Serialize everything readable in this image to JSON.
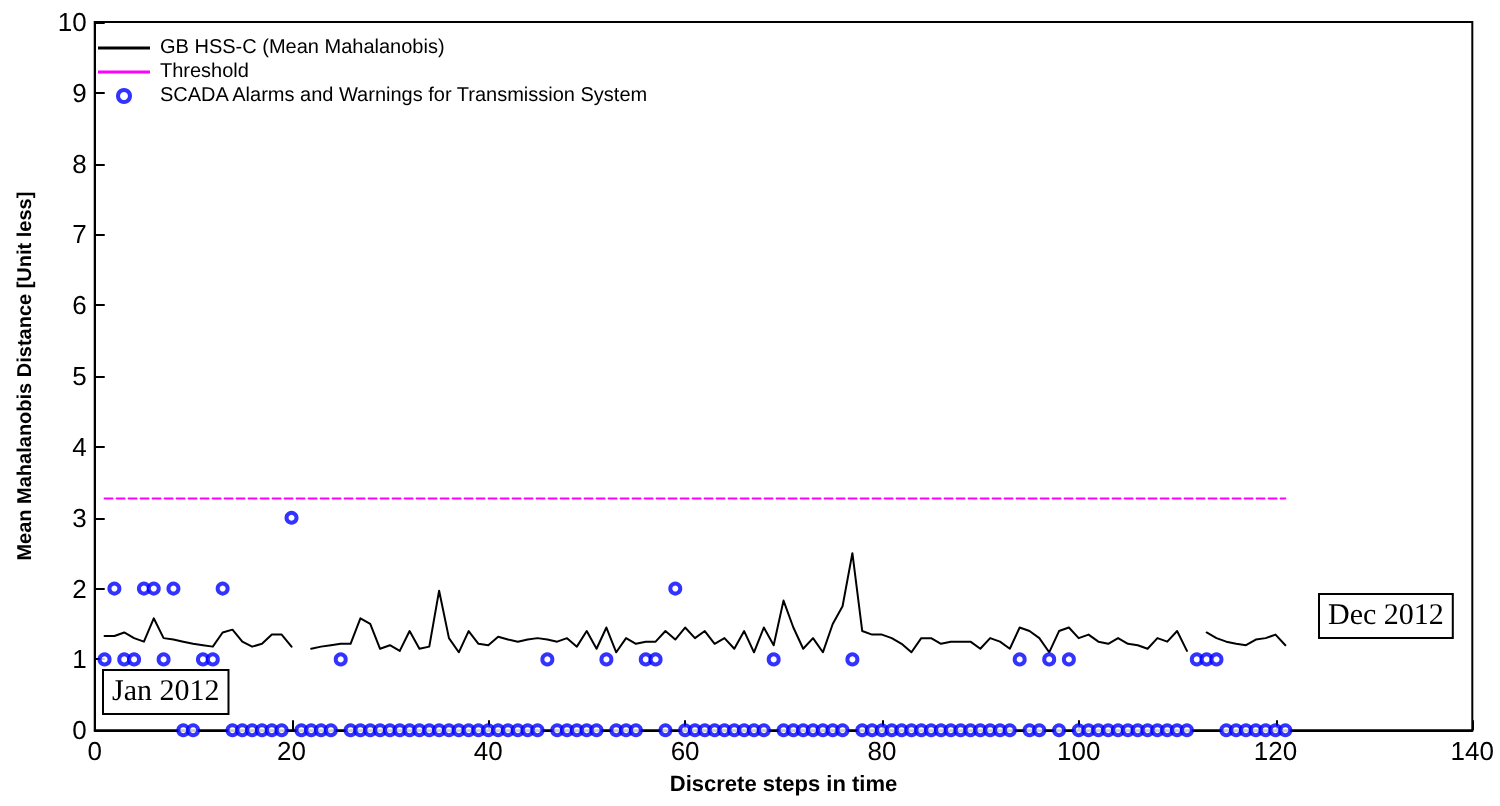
{
  "chart_data": {
    "type": "line",
    "xlabel": "Discrete steps in time",
    "ylabel": "Mean Mahalanobis Distance [Unit less]",
    "x": [
      1,
      2,
      3,
      4,
      5,
      6,
      7,
      8,
      9,
      10,
      11,
      12,
      13,
      14,
      15,
      16,
      17,
      18,
      19,
      20,
      21,
      22,
      23,
      24,
      25,
      26,
      27,
      28,
      29,
      30,
      31,
      32,
      33,
      34,
      35,
      36,
      37,
      38,
      39,
      40,
      41,
      42,
      43,
      44,
      45,
      46,
      47,
      48,
      49,
      50,
      51,
      52,
      53,
      54,
      55,
      56,
      57,
      58,
      59,
      60,
      61,
      62,
      63,
      64,
      65,
      66,
      67,
      68,
      69,
      70,
      71,
      72,
      73,
      74,
      75,
      76,
      77,
      78,
      79,
      80,
      81,
      82,
      83,
      84,
      85,
      86,
      87,
      88,
      89,
      90,
      91,
      92,
      93,
      94,
      95,
      96,
      97,
      98,
      99,
      100,
      101,
      102,
      103,
      104,
      105,
      106,
      107,
      108,
      109,
      110,
      111,
      112,
      113,
      114,
      115,
      116,
      117,
      118,
      119,
      120,
      121
    ],
    "series": [
      {
        "name": "GB HSS-C (Mean Mahalanobis)",
        "color": "#000000",
        "marker": "none",
        "line_style": "solid",
        "values": [
          1.33,
          1.33,
          1.38,
          1.3,
          1.25,
          1.58,
          1.3,
          1.28,
          1.25,
          1.22,
          1.2,
          1.18,
          1.38,
          1.42,
          1.25,
          1.18,
          1.22,
          1.35,
          1.35,
          1.18,
          null,
          1.15,
          1.18,
          1.2,
          1.22,
          1.22,
          1.58,
          1.5,
          1.15,
          1.2,
          1.12,
          1.4,
          1.15,
          1.18,
          1.97,
          1.3,
          1.1,
          1.4,
          1.22,
          1.2,
          1.32,
          1.28,
          1.25,
          1.28,
          1.3,
          1.28,
          1.25,
          1.3,
          1.18,
          1.4,
          1.15,
          1.45,
          1.1,
          1.3,
          1.22,
          1.25,
          1.25,
          1.4,
          1.28,
          1.45,
          1.3,
          1.4,
          1.22,
          1.3,
          1.15,
          1.4,
          1.1,
          1.45,
          1.2,
          1.83,
          1.45,
          1.15,
          1.3,
          1.1,
          1.5,
          1.75,
          2.5,
          1.4,
          1.35,
          1.35,
          1.3,
          1.22,
          1.1,
          1.3,
          1.3,
          1.22,
          1.25,
          1.25,
          1.25,
          1.15,
          1.3,
          1.25,
          1.15,
          1.45,
          1.4,
          1.3,
          1.1,
          1.4,
          1.45,
          1.3,
          1.35,
          1.25,
          1.22,
          1.3,
          1.22,
          1.2,
          1.15,
          1.3,
          1.25,
          1.4,
          1.12,
          null,
          1.38,
          1.3,
          1.25,
          1.22,
          1.2,
          1.28,
          1.3,
          1.35,
          1.2
        ]
      },
      {
        "name": "Threshold",
        "type": "line",
        "color": "#ff00ff",
        "marker": "none",
        "line_style": "dashed",
        "x": [
          1,
          121
        ],
        "values": [
          3.27,
          3.27
        ]
      },
      {
        "name": "SCADA Alarms and Warnings for Transmission System",
        "type": "scatter",
        "color": "#0000ff",
        "marker": "circle",
        "values": [
          1,
          2,
          1,
          1,
          2,
          2,
          1,
          2,
          0,
          0,
          1,
          1,
          2,
          0,
          0,
          0,
          0,
          0,
          0,
          3,
          0,
          0,
          0,
          0,
          1,
          0,
          0,
          0,
          0,
          0,
          0,
          0,
          0,
          0,
          0,
          0,
          0,
          0,
          0,
          0,
          0,
          0,
          0,
          0,
          0,
          1,
          0,
          0,
          0,
          0,
          0,
          1,
          0,
          0,
          0,
          1,
          1,
          0,
          2,
          0,
          0,
          0,
          0,
          0,
          0,
          0,
          0,
          0,
          1,
          0,
          0,
          0,
          0,
          0,
          0,
          0,
          1,
          0,
          0,
          0,
          0,
          0,
          0,
          0,
          0,
          0,
          0,
          0,
          0,
          0,
          0,
          0,
          0,
          1,
          0,
          0,
          1,
          0,
          1,
          0,
          0,
          0,
          0,
          0,
          0,
          0,
          0,
          0,
          0,
          0,
          0,
          1,
          1,
          1,
          0,
          0,
          0,
          0,
          0,
          0,
          0
        ]
      }
    ],
    "xlim": [
      0,
      140
    ],
    "xticks": [
      0,
      20,
      40,
      60,
      80,
      100,
      120,
      140
    ],
    "ylim": [
      0,
      10
    ],
    "yticks": [
      0,
      1,
      2,
      3,
      4,
      5,
      6,
      7,
      8,
      9,
      10
    ],
    "grid": false,
    "legend": "top left",
    "annotations": [
      "Jan 2012",
      "Dec 2012"
    ]
  }
}
